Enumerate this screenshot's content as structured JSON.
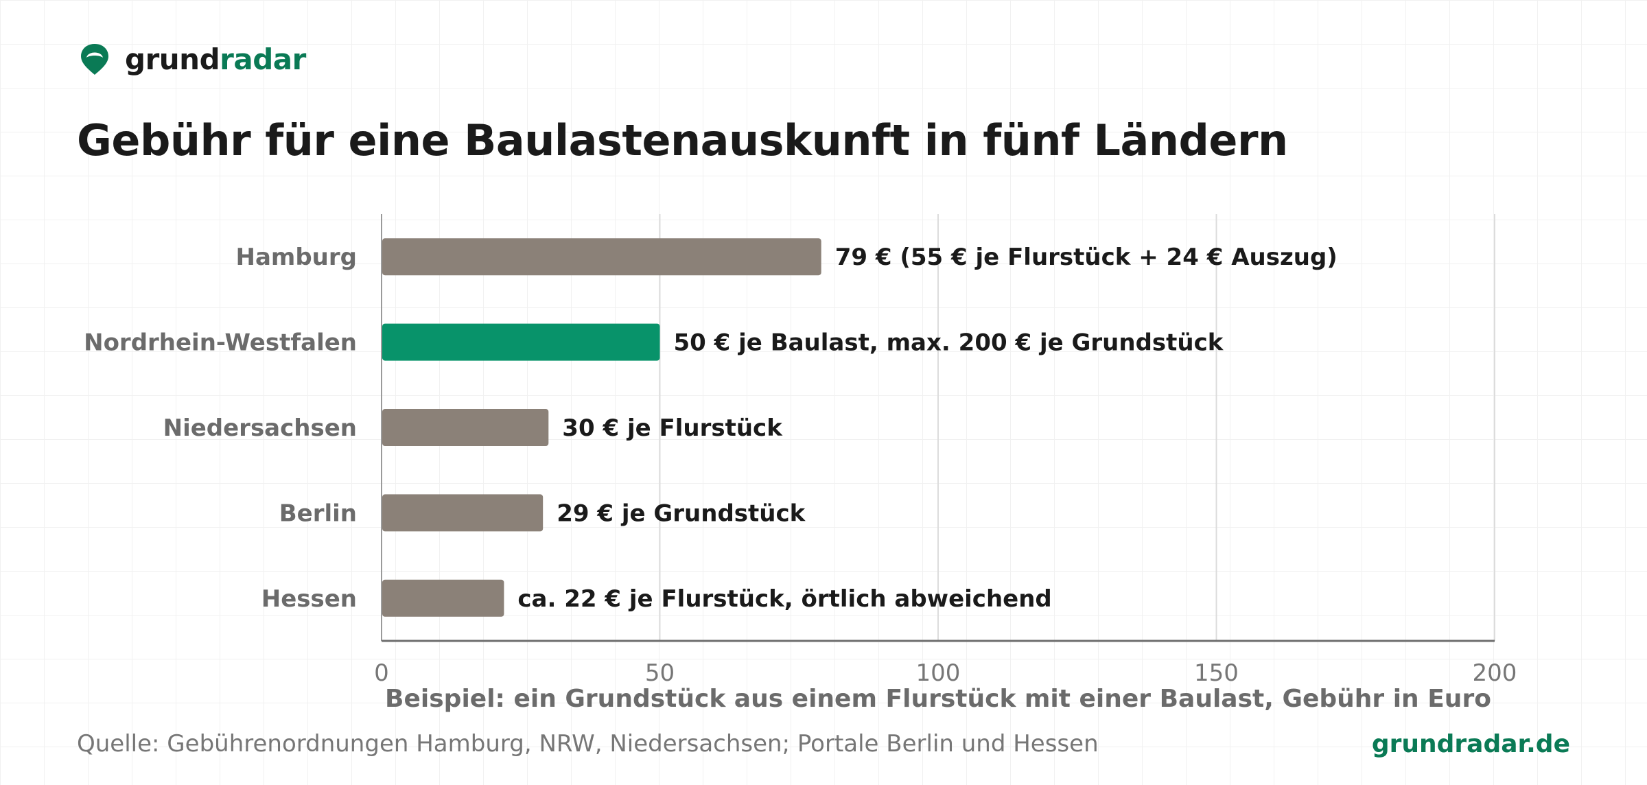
{
  "brand": {
    "name_part1": "grund",
    "name_part2": "radar",
    "icon": "map-pin-icon",
    "accent": "#0a7a55"
  },
  "chart_data": {
    "type": "bar",
    "orientation": "horizontal",
    "title": "Gebühr für eine Baulastenauskunft in fünf Ländern",
    "xlabel": "Beispiel: ein Grundstück aus einem Flurstück mit einer Baulast, Gebühr in Euro",
    "ylabel": "",
    "xlim": [
      0,
      200
    ],
    "xticks": [
      0,
      50,
      100,
      150,
      200
    ],
    "grid": true,
    "categories": [
      "Hamburg",
      "Nordrhein-Westfalen",
      "Niedersachsen",
      "Berlin",
      "Hessen"
    ],
    "values": [
      79,
      50,
      30,
      29,
      22
    ],
    "data_labels": [
      "79 € (55 € je Flurstück + 24 € Auszug)",
      "50 € je Baulast, max. 200 € je Grundstück",
      "30 € je Flurstück",
      "29 € je Grundstück",
      "ca. 22 € je Flurstück, örtlich abweichend"
    ],
    "highlight_category": "Nordrhein-Westfalen",
    "colors": {
      "default": "#8b8178",
      "highlight": "#08936a"
    }
  },
  "footer": {
    "source": "Quelle: Gebührenordnungen Hamburg, NRW, Niedersachsen; Portale Berlin und Hessen",
    "url": "grundradar.de"
  }
}
